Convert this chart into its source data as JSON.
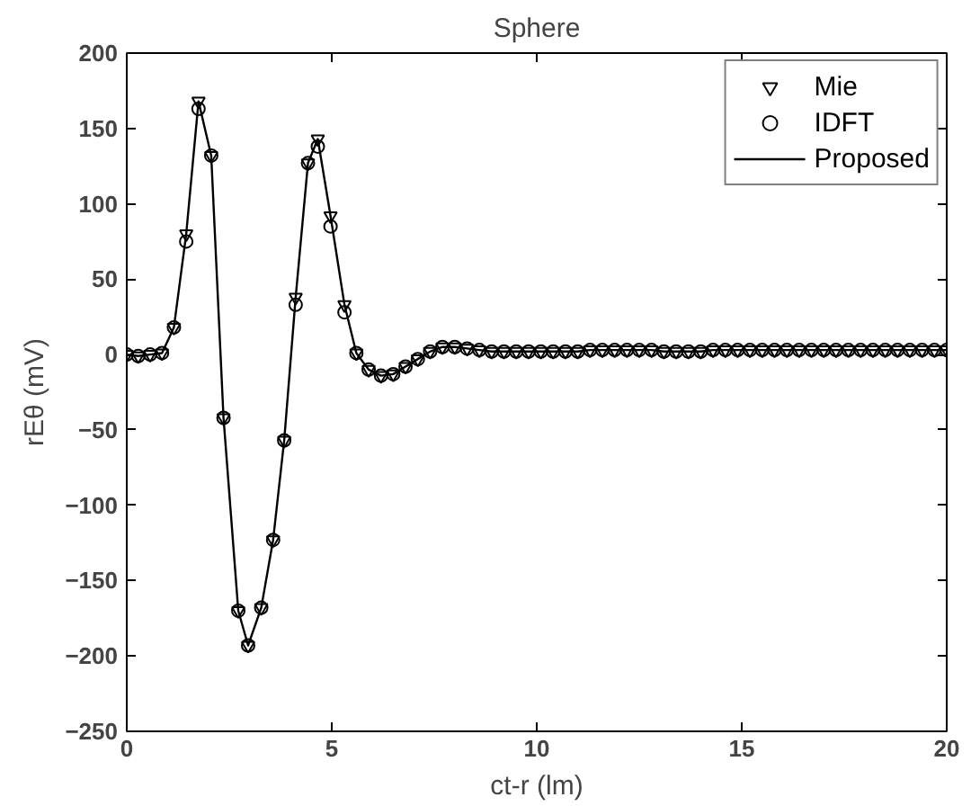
{
  "chart_data": {
    "type": "line",
    "title": "Sphere",
    "xlabel": "ct-r (lm)",
    "ylabel": "rEθ (mV)",
    "x": [
      0.0,
      0.28,
      0.57,
      0.86,
      1.15,
      1.45,
      1.75,
      2.06,
      2.36,
      2.72,
      2.96,
      3.28,
      3.57,
      3.84,
      4.12,
      4.42,
      4.66,
      4.97,
      5.31,
      5.6,
      5.9,
      6.2,
      6.5,
      6.8,
      7.1,
      7.4,
      7.7,
      8.0,
      8.3,
      8.6,
      8.9,
      9.2,
      9.5,
      9.8,
      10.1,
      10.4,
      10.7,
      11.0,
      11.3,
      11.6,
      11.9,
      12.2,
      12.5,
      12.8,
      13.1,
      13.4,
      13.7,
      14.0,
      14.3,
      14.6,
      14.9,
      15.2,
      15.5,
      15.8,
      16.1,
      16.4,
      16.7,
      17.0,
      17.3,
      17.6,
      17.9,
      18.2,
      18.5,
      18.8,
      19.1,
      19.4,
      19.7,
      20.0
    ],
    "series": [
      {
        "name": "Mie",
        "type": "scatter",
        "marker": "triangle",
        "color": "#000000",
        "values": [
          0,
          -1,
          0,
          1,
          18,
          80,
          168,
          132,
          -42,
          -170,
          -193,
          -168,
          -123,
          -57,
          38,
          127,
          143,
          92,
          33,
          1,
          -10,
          -14,
          -13,
          -8,
          -3,
          2,
          5,
          5,
          4,
          3,
          2,
          2,
          2,
          2,
          2,
          2,
          2,
          2,
          3,
          3,
          3,
          3,
          3,
          3,
          2,
          2,
          2,
          2,
          3,
          3,
          3,
          3,
          3,
          3,
          3,
          3,
          3,
          3,
          3,
          3,
          3,
          3,
          3,
          3,
          3,
          3,
          3,
          3
        ]
      },
      {
        "name": "IDFT",
        "type": "scatter",
        "marker": "circle",
        "color": "#000000",
        "values": [
          0,
          -1,
          0,
          1,
          18,
          75,
          163,
          132,
          -42,
          -170,
          -193,
          -168,
          -123,
          -57,
          33,
          127,
          138,
          85,
          28,
          1,
          -10,
          -14,
          -13,
          -8,
          -3,
          2,
          5,
          5,
          4,
          3,
          2,
          2,
          2,
          2,
          2,
          2,
          2,
          2,
          3,
          3,
          3,
          3,
          3,
          3,
          2,
          2,
          2,
          2,
          3,
          3,
          3,
          3,
          3,
          3,
          3,
          3,
          3,
          3,
          3,
          3,
          3,
          3,
          3,
          3,
          3,
          3,
          3,
          3
        ]
      },
      {
        "name": "Proposed",
        "marker": "none",
        "line_style": "solid",
        "color": "#000000",
        "values": [
          0,
          -1,
          0,
          1,
          18,
          80,
          168,
          132,
          -42,
          -170,
          -193,
          -168,
          -123,
          -57,
          38,
          127,
          143,
          92,
          33,
          1,
          -10,
          -14,
          -13,
          -8,
          -3,
          2,
          5,
          5,
          4,
          3,
          2,
          2,
          2,
          2,
          2,
          2,
          2,
          2,
          3,
          3,
          3,
          3,
          3,
          3,
          2,
          2,
          2,
          2,
          3,
          3,
          3,
          3,
          3,
          3,
          3,
          3,
          3,
          3,
          3,
          3,
          3,
          3,
          3,
          3,
          3,
          3,
          3,
          3
        ]
      }
    ],
    "xlim": [
      0,
      20
    ],
    "ylim": [
      -250,
      200
    ],
    "xticks": [
      0,
      5,
      10,
      15,
      20
    ],
    "yticks": [
      -250,
      -200,
      -150,
      -100,
      -50,
      0,
      50,
      100,
      150,
      200
    ],
    "grid": false,
    "legend": "top right"
  }
}
